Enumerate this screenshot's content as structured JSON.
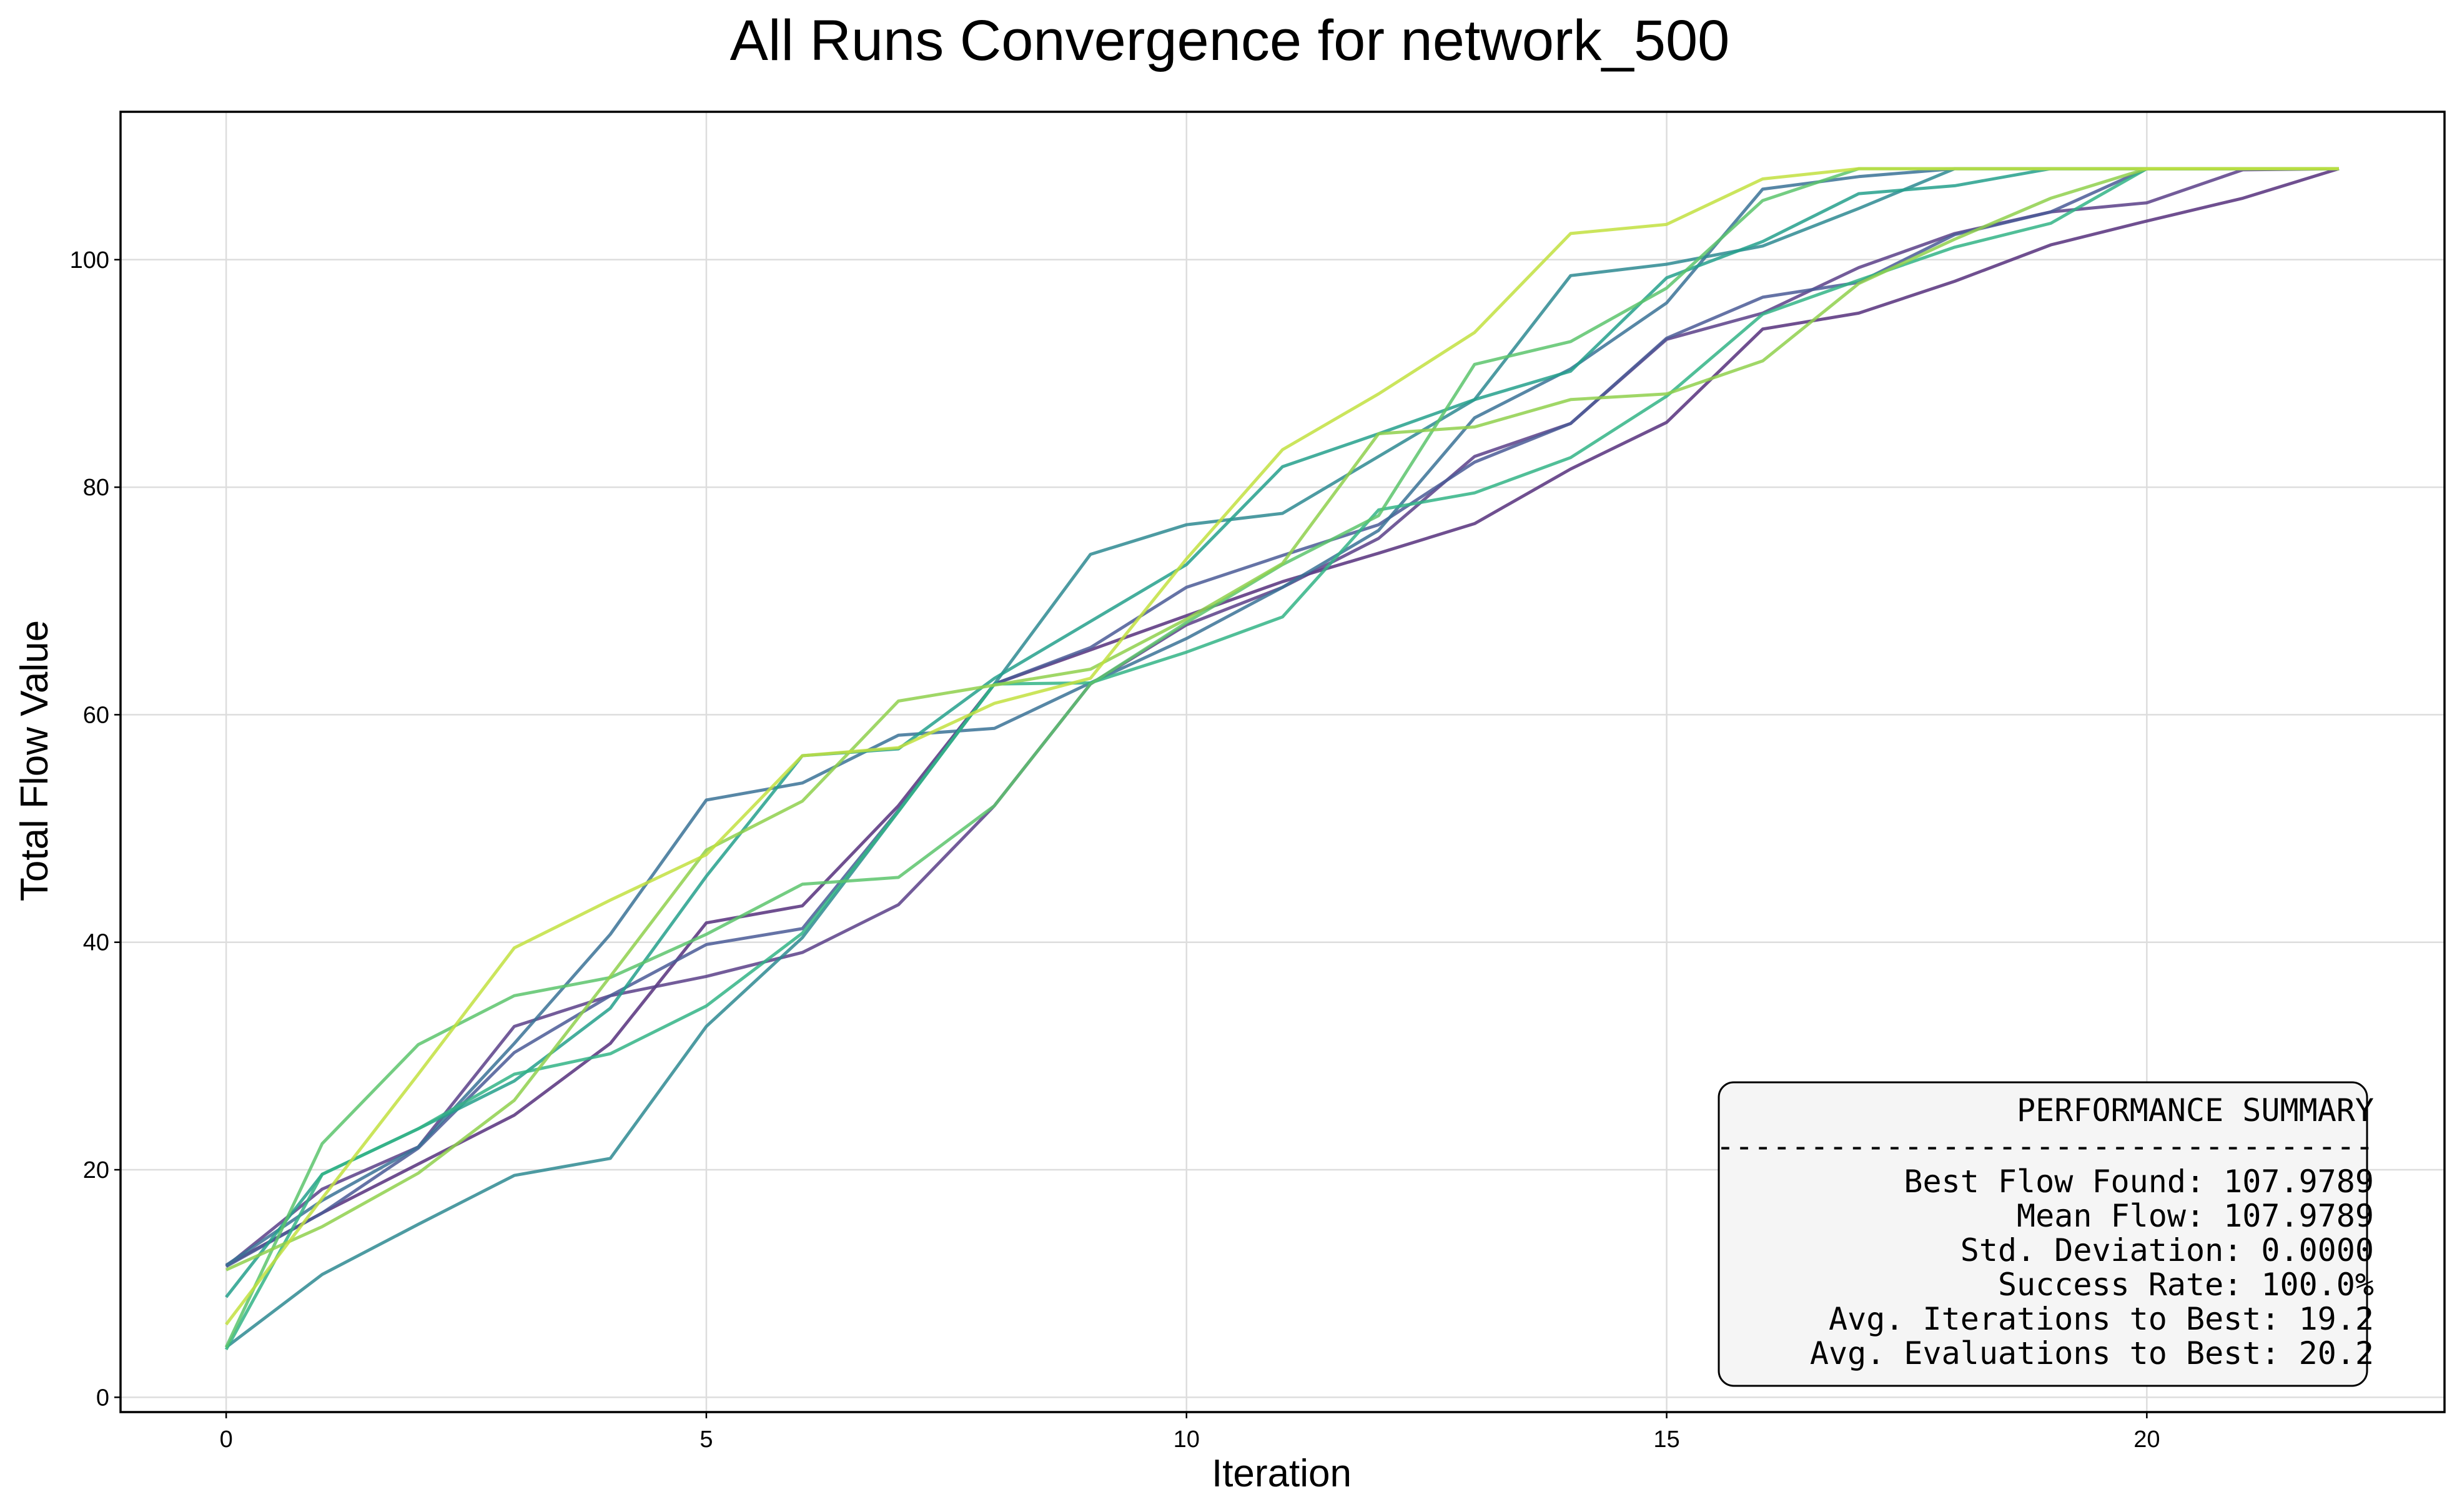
{
  "chart_data": {
    "type": "line",
    "title": "All Runs Convergence for network_500",
    "xlabel": "Iteration",
    "ylabel": "Total Flow Value",
    "xlim": [
      -1.1,
      23.1
    ],
    "ylim": [
      -1.3,
      113
    ],
    "xticks": [
      0,
      5,
      10,
      15,
      20
    ],
    "yticks": [
      0,
      20,
      40,
      60,
      80,
      100
    ],
    "grid": true,
    "legend": "none",
    "colors": [
      "#440154",
      "#482878",
      "#3e4a89",
      "#31688e",
      "#26828e",
      "#1f9e89",
      "#35b779",
      "#6ece58",
      "#b5de2b",
      "#c8e020"
    ],
    "series": [
      {
        "color": "#56307c",
        "x": [
          0,
          1,
          2,
          3,
          4,
          5,
          6,
          7,
          8,
          9,
          10,
          11,
          12,
          13,
          14,
          15,
          16,
          17,
          18,
          19,
          20,
          21,
          22
        ],
        "y": [
          11.6,
          16.2,
          20.5,
          24.8,
          31.1,
          41.7,
          43.2,
          52.0,
          62.7,
          65.7,
          68.7,
          71.7,
          74.2,
          76.8,
          81.6,
          85.7,
          93.9,
          95.3,
          98.1,
          101.3,
          103.4,
          105.4,
          108.0
        ]
      },
      {
        "color": "#5a3f88",
        "x": [
          0,
          1,
          2,
          3,
          4,
          5,
          6,
          7,
          8,
          9,
          10,
          11,
          12,
          13,
          14,
          15,
          16,
          17,
          18,
          19,
          20,
          21,
          22
        ],
        "y": [
          11.5,
          18.3,
          22.0,
          32.6,
          35.3,
          37.0,
          39.1,
          43.3,
          52.0,
          62.7,
          67.9,
          71.2,
          75.5,
          82.7,
          85.6,
          93.0,
          95.3,
          99.3,
          102.3,
          104.2,
          105.0,
          107.9,
          108.0
        ]
      },
      {
        "color": "#4a5b96",
        "x": [
          0,
          1,
          2,
          3,
          4,
          5,
          6,
          7,
          8,
          9,
          10,
          11,
          12,
          13,
          14,
          15,
          16,
          17,
          18,
          19,
          20,
          21,
          22
        ],
        "y": [
          11.5,
          16.2,
          21.9,
          30.3,
          35.3,
          39.8,
          41.2,
          51.6,
          62.7,
          65.9,
          71.2,
          74.0,
          76.7,
          82.2,
          85.6,
          93.1,
          96.7,
          98.0,
          102.2,
          104.2,
          108.0,
          108.0,
          108.0
        ]
      },
      {
        "color": "#3a7297",
        "x": [
          0,
          1,
          2,
          3,
          4,
          5,
          6,
          7,
          8,
          9,
          10,
          11,
          12,
          13,
          14,
          15,
          16,
          17,
          18,
          19,
          20,
          21,
          22
        ],
        "y": [
          11.6,
          17.3,
          22.0,
          31.1,
          40.7,
          52.5,
          54.0,
          58.2,
          58.8,
          62.8,
          66.7,
          71.2,
          76.2,
          86.1,
          90.4,
          96.2,
          106.2,
          107.3,
          108.0,
          108.0,
          108.0,
          108.0,
          108.0
        ]
      },
      {
        "color": "#2e8a92",
        "x": [
          0,
          1,
          2,
          3,
          4,
          5,
          6,
          7,
          8,
          9,
          10,
          11,
          12,
          13,
          14,
          15,
          16,
          17,
          18,
          19,
          20,
          21,
          22
        ],
        "y": [
          4.4,
          10.8,
          15.2,
          19.5,
          21.0,
          32.6,
          40.4,
          51.5,
          62.7,
          74.1,
          76.7,
          77.7,
          82.7,
          87.7,
          98.6,
          99.6,
          101.2,
          104.5,
          108.0,
          108.0,
          108.0,
          108.0,
          108.0
        ]
      },
      {
        "color": "#24a08c",
        "x": [
          0,
          1,
          2,
          3,
          4,
          5,
          6,
          7,
          8,
          9,
          10,
          11,
          12,
          13,
          14,
          15,
          16,
          17,
          18,
          19,
          20,
          21,
          22
        ],
        "y": [
          8.8,
          19.6,
          23.6,
          27.8,
          34.2,
          45.8,
          56.4,
          57.0,
          63.2,
          68.2,
          73.2,
          81.8,
          84.7,
          87.7,
          90.2,
          98.4,
          101.6,
          105.8,
          106.5,
          108.0,
          108.0,
          108.0,
          108.0
        ]
      },
      {
        "color": "#33b486",
        "x": [
          0,
          1,
          2,
          3,
          4,
          5,
          6,
          7,
          8,
          9,
          10,
          11,
          12,
          13,
          14,
          15,
          16,
          17,
          18,
          19,
          20,
          21,
          22
        ],
        "y": [
          4.2,
          19.6,
          23.6,
          28.4,
          30.2,
          34.4,
          40.8,
          51.5,
          62.7,
          62.8,
          65.5,
          68.6,
          78.0,
          79.5,
          82.6,
          88.0,
          95.2,
          98.2,
          101.1,
          103.2,
          108.0,
          108.0,
          108.0
        ]
      },
      {
        "color": "#5cc46c",
        "x": [
          0,
          1,
          2,
          3,
          4,
          5,
          6,
          7,
          8,
          9,
          10,
          11,
          12,
          13,
          14,
          15,
          16,
          17,
          18,
          19,
          20,
          21,
          22
        ],
        "y": [
          4.4,
          22.3,
          31.0,
          35.3,
          36.9,
          40.7,
          45.1,
          45.7,
          52.0,
          62.7,
          68.1,
          73.2,
          77.5,
          90.8,
          92.8,
          97.5,
          105.2,
          108.0,
          108.0,
          108.0,
          108.0,
          108.0,
          108.0
        ]
      },
      {
        "color": "#8fd04c",
        "x": [
          0,
          1,
          2,
          3,
          4,
          5,
          6,
          7,
          8,
          9,
          10,
          11,
          12,
          13,
          14,
          15,
          16,
          17,
          18,
          19,
          20,
          21,
          22
        ],
        "y": [
          11.2,
          15.0,
          19.7,
          26.1,
          37.0,
          48.1,
          52.4,
          61.2,
          62.6,
          64.0,
          68.4,
          73.3,
          84.7,
          85.3,
          87.7,
          88.2,
          91.1,
          97.9,
          101.8,
          105.4,
          108.0,
          108.0,
          108.0
        ]
      },
      {
        "color": "#c2e040",
        "x": [
          0,
          1,
          2,
          3,
          4,
          5,
          6,
          7,
          8,
          9,
          10,
          11,
          12,
          13,
          14,
          15,
          16,
          17,
          18,
          19,
          20,
          21,
          22
        ],
        "y": [
          6.4,
          17.5,
          28.4,
          39.5,
          43.7,
          47.7,
          56.4,
          57.1,
          61.0,
          63.2,
          73.7,
          83.3,
          88.2,
          93.6,
          102.3,
          103.1,
          107.1,
          108.0,
          108.0,
          108.0,
          108.0,
          108.0,
          108.0
        ]
      }
    ]
  },
  "summary_box": {
    "lines": [
      "PERFORMANCE SUMMARY",
      "-----------------------------------",
      "Best Flow Found: 107.9789",
      "Mean Flow: 107.9789",
      "Std. Deviation: 0.0000",
      "Success Rate: 100.0%",
      "Avg. Iterations to Best: 19.2",
      "Avg. Evaluations to Best: 20.2"
    ]
  }
}
